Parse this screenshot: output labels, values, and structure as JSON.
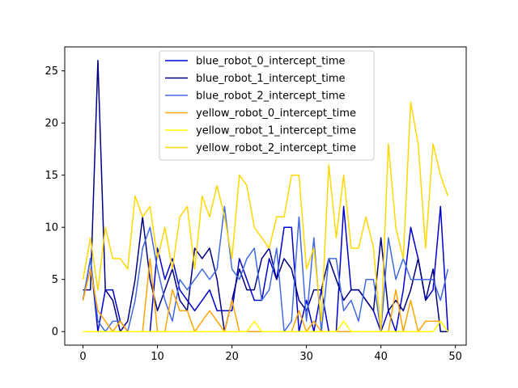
{
  "chart_data": {
    "type": "line",
    "title": "",
    "xlabel": "",
    "ylabel": "",
    "xlim": [
      -2.45,
      51.45
    ],
    "ylim": [
      -1.3,
      27.3
    ],
    "xticks": [
      0,
      10,
      20,
      30,
      40,
      50
    ],
    "yticks": [
      0,
      5,
      10,
      15,
      20,
      25
    ],
    "grid": false,
    "legend_position": "upper center",
    "x": [
      0,
      1,
      2,
      3,
      4,
      5,
      6,
      7,
      8,
      9,
      10,
      11,
      12,
      13,
      14,
      15,
      16,
      17,
      18,
      19,
      20,
      21,
      22,
      23,
      24,
      25,
      26,
      27,
      28,
      29,
      30,
      31,
      32,
      33,
      34,
      35,
      36,
      37,
      38,
      39,
      40,
      41,
      42,
      43,
      44,
      45,
      46,
      47,
      48,
      49
    ],
    "series": [
      {
        "name": "blue_robot_0_intercept_time",
        "color": "#0000cd",
        "values": [
          3,
          7,
          0,
          4,
          4,
          1,
          0,
          0,
          0,
          0,
          8,
          5,
          7,
          4,
          3,
          2,
          3,
          4,
          2,
          2,
          2,
          7,
          5,
          3,
          3,
          7,
          5,
          10,
          10,
          0,
          3,
          0,
          4,
          0,
          0,
          12,
          4,
          4,
          3,
          2,
          0,
          2,
          0,
          4,
          10,
          7,
          3,
          4,
          12,
          0
        ]
      },
      {
        "name": "blue_robot_1_intercept_time",
        "color": "#000080",
        "values": [
          4,
          4,
          26,
          4,
          3,
          0,
          1,
          5,
          11,
          5,
          2,
          4,
          6,
          3,
          2,
          8,
          7,
          8,
          5,
          0,
          3,
          6,
          4,
          4,
          7,
          8,
          5,
          7,
          6,
          3,
          2,
          4,
          4,
          7,
          5,
          3,
          4,
          4,
          3,
          2,
          9,
          2,
          3,
          2,
          4,
          7,
          3,
          6,
          0,
          0
        ]
      },
      {
        "name": "blue_robot_2_intercept_time",
        "color": "#4169e1",
        "values": [
          3,
          7,
          1,
          0,
          1,
          1,
          0,
          3,
          8,
          10,
          6,
          3,
          1,
          5,
          4,
          5,
          6,
          5,
          6,
          12,
          6,
          5,
          7,
          8,
          3,
          4,
          8,
          0,
          1,
          11,
          1,
          9,
          0,
          7,
          7,
          2,
          3,
          1,
          5,
          5,
          0,
          9,
          5,
          7,
          5,
          5,
          5,
          5,
          3,
          6
        ]
      },
      {
        "name": "yellow_robot_0_intercept_time",
        "color": "#ffa500",
        "values": [
          3,
          6,
          2,
          1,
          0,
          1,
          0,
          0,
          0,
          7,
          0,
          0,
          4,
          2,
          2,
          0,
          1,
          2,
          1,
          0,
          3,
          0,
          0,
          0,
          0,
          0,
          0,
          0,
          0,
          2,
          0,
          1,
          0,
          0,
          0,
          0,
          0,
          0,
          0,
          0,
          0,
          0,
          4,
          0,
          3,
          0,
          1,
          1,
          1,
          0
        ]
      },
      {
        "name": "yellow_robot_1_intercept_time",
        "color": "#ffff00",
        "values": [
          0,
          0,
          0,
          0,
          0,
          0,
          0,
          0,
          0,
          0,
          0,
          0,
          0,
          0,
          0,
          0,
          0,
          0,
          0,
          0,
          0,
          0,
          0,
          1,
          0,
          0,
          0,
          0,
          0,
          0,
          0,
          0,
          0,
          0,
          0,
          1,
          0,
          0,
          0,
          0,
          0,
          0,
          0,
          0,
          0,
          0,
          0,
          0,
          1,
          0
        ]
      },
      {
        "name": "yellow_robot_2_intercept_time",
        "color": "#ffd700",
        "values": [
          5,
          9,
          4,
          10,
          7,
          7,
          6,
          13,
          11,
          12,
          7,
          10,
          6,
          11,
          12,
          6,
          13,
          11,
          14,
          11,
          7,
          15,
          14,
          10,
          9,
          8,
          11,
          11,
          15,
          15,
          6,
          8,
          1,
          16,
          9,
          15,
          8,
          8,
          11,
          8,
          0,
          18,
          10,
          7,
          22,
          18,
          8,
          18,
          15,
          13
        ]
      }
    ]
  }
}
